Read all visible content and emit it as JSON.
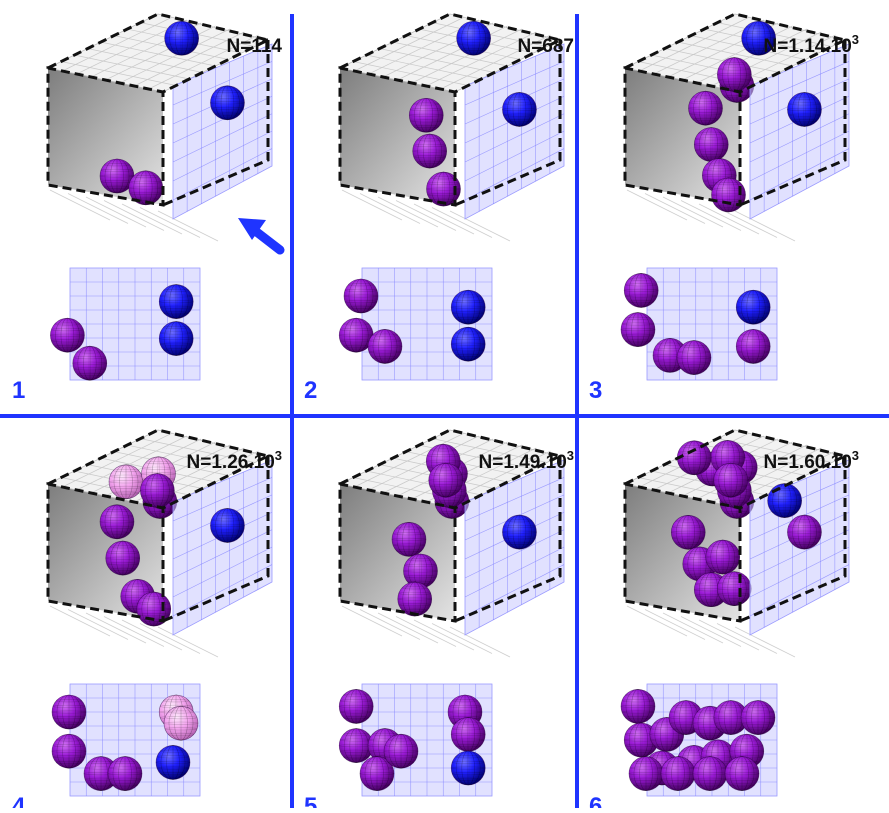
{
  "colors": {
    "divider": "#1f34ff",
    "arrow": "#1f34ff",
    "panel_label": "#1f34ff",
    "box_side": "#9e9e9e",
    "box_top": "#f2f2f2",
    "window": "#c8c8ff",
    "sphere_blue": "#1a1aff",
    "sphere_purple": "#9a1ad6",
    "sphere_pink": "#f3a3ee"
  },
  "panels": [
    {
      "index_label": "1",
      "n_base": "N=114",
      "n_exp": "",
      "top": [
        {
          "x": 0.78,
          "z": 0.45,
          "c": "blue"
        }
      ],
      "side": [
        {
          "y": 0.3,
          "z": 0.55,
          "c": "blue"
        }
      ],
      "back": [
        {
          "x": 0.6,
          "z": 0.2,
          "c": "purple"
        },
        {
          "x": 0.85,
          "z": 0.15,
          "c": "purple"
        }
      ],
      "view": [
        {
          "u": 0.14,
          "v": 0.6,
          "c": "purple"
        },
        {
          "u": 0.28,
          "v": 0.85,
          "c": "purple"
        },
        {
          "u": 0.82,
          "v": 0.3,
          "c": "blue"
        },
        {
          "u": 0.82,
          "v": 0.63,
          "c": "blue"
        }
      ]
    },
    {
      "index_label": "2",
      "n_base": "N=687",
      "n_exp": "",
      "top": [
        {
          "x": 0.78,
          "z": 0.45,
          "c": "blue"
        }
      ],
      "side": [
        {
          "y": 0.35,
          "z": 0.55,
          "c": "blue"
        }
      ],
      "back": [
        {
          "x": 0.75,
          "z": 0.75,
          "c": "purple"
        },
        {
          "x": 0.78,
          "z": 0.45,
          "c": "purple"
        },
        {
          "x": 0.9,
          "z": 0.15,
          "c": "purple"
        }
      ],
      "view": [
        {
          "u": 0.15,
          "v": 0.25,
          "c": "purple"
        },
        {
          "u": 0.12,
          "v": 0.6,
          "c": "purple"
        },
        {
          "u": 0.3,
          "v": 0.7,
          "c": "purple"
        },
        {
          "u": 0.82,
          "v": 0.35,
          "c": "blue"
        },
        {
          "u": 0.82,
          "v": 0.68,
          "c": "blue"
        }
      ]
    },
    {
      "index_label": "3",
      "n_base": "N=1.14.10",
      "n_exp": "3",
      "top": [
        {
          "x": 0.78,
          "z": 0.45,
          "c": "blue"
        },
        {
          "x": 0.08,
          "z": 0.9,
          "c": "purple"
        },
        {
          "x": 0.22,
          "z": 0.75,
          "c": "purple"
        }
      ],
      "side": [
        {
          "y": 0.35,
          "z": 0.55,
          "c": "blue"
        }
      ],
      "back": [
        {
          "x": 0.7,
          "z": 0.8,
          "c": "purple"
        },
        {
          "x": 0.75,
          "z": 0.5,
          "c": "purple"
        },
        {
          "x": 0.82,
          "z": 0.25,
          "c": "purple"
        },
        {
          "x": 0.9,
          "z": 0.1,
          "c": "purple"
        }
      ],
      "view": [
        {
          "u": 0.12,
          "v": 0.2,
          "c": "purple"
        },
        {
          "u": 0.1,
          "v": 0.55,
          "c": "purple"
        },
        {
          "u": 0.3,
          "v": 0.78,
          "c": "purple"
        },
        {
          "u": 0.45,
          "v": 0.8,
          "c": "purple"
        },
        {
          "u": 0.82,
          "v": 0.35,
          "c": "blue"
        },
        {
          "u": 0.82,
          "v": 0.7,
          "c": "purple"
        }
      ]
    },
    {
      "index_label": "4",
      "n_base": "N=1.26.10",
      "n_exp": "3",
      "top": [
        {
          "x": 0.25,
          "z": 0.45,
          "c": "pink"
        },
        {
          "x": 0.45,
          "z": 0.55,
          "c": "pink"
        },
        {
          "x": 0.08,
          "z": 0.9,
          "c": "purple"
        },
        {
          "x": 0.22,
          "z": 0.75,
          "c": "purple"
        }
      ],
      "side": [
        {
          "y": 0.35,
          "z": 0.55,
          "c": "blue"
        }
      ],
      "back": [
        {
          "x": 0.6,
          "z": 0.8,
          "c": "purple"
        },
        {
          "x": 0.65,
          "z": 0.5,
          "c": "purple"
        },
        {
          "x": 0.78,
          "z": 0.2,
          "c": "purple"
        },
        {
          "x": 0.92,
          "z": 0.12,
          "c": "purple"
        }
      ],
      "view": [
        {
          "u": 0.15,
          "v": 0.25,
          "c": "purple"
        },
        {
          "u": 0.15,
          "v": 0.6,
          "c": "purple"
        },
        {
          "u": 0.35,
          "v": 0.8,
          "c": "purple"
        },
        {
          "u": 0.5,
          "v": 0.8,
          "c": "purple"
        },
        {
          "u": 0.82,
          "v": 0.25,
          "c": "pink"
        },
        {
          "u": 0.85,
          "v": 0.35,
          "c": "pink"
        },
        {
          "u": 0.8,
          "v": 0.7,
          "c": "blue"
        }
      ]
    },
    {
      "index_label": "5",
      "n_base": "N=1.49.10",
      "n_exp": "3",
      "top": [
        {
          "x": 0.45,
          "z": 0.55,
          "c": "purple"
        },
        {
          "x": 0.6,
          "z": 0.35,
          "c": "purple"
        },
        {
          "x": 0.08,
          "z": 0.9,
          "c": "purple"
        },
        {
          "x": 0.22,
          "z": 0.75,
          "c": "purple"
        },
        {
          "x": 0.35,
          "z": 0.6,
          "c": "purple"
        }
      ],
      "side": [
        {
          "y": 0.4,
          "z": 0.55,
          "c": "blue"
        }
      ],
      "back": [
        {
          "x": 0.6,
          "z": 0.65,
          "c": "purple"
        },
        {
          "x": 0.7,
          "z": 0.4,
          "c": "purple"
        },
        {
          "x": 0.65,
          "z": 0.15,
          "c": "purple"
        }
      ],
      "view": [
        {
          "u": 0.12,
          "v": 0.2,
          "c": "purple"
        },
        {
          "u": 0.12,
          "v": 0.55,
          "c": "purple"
        },
        {
          "u": 0.3,
          "v": 0.55,
          "c": "purple"
        },
        {
          "u": 0.25,
          "v": 0.8,
          "c": "purple"
        },
        {
          "u": 0.4,
          "v": 0.6,
          "c": "purple"
        },
        {
          "u": 0.8,
          "v": 0.25,
          "c": "purple"
        },
        {
          "u": 0.82,
          "v": 0.45,
          "c": "purple"
        },
        {
          "u": 0.82,
          "v": 0.75,
          "c": "blue"
        }
      ]
    },
    {
      "index_label": "6",
      "n_base": "N=1.60.10",
      "n_exp": "3",
      "top": [
        {
          "x": 0.45,
          "z": 0.35,
          "c": "purple"
        },
        {
          "x": 0.55,
          "z": 0.5,
          "c": "purple"
        },
        {
          "x": 0.65,
          "z": 0.3,
          "c": "purple"
        },
        {
          "x": 0.08,
          "z": 0.9,
          "c": "purple"
        },
        {
          "x": 0.22,
          "z": 0.75,
          "c": "purple"
        },
        {
          "x": 0.35,
          "z": 0.6,
          "c": "purple"
        },
        {
          "x": 0.55,
          "z": 0.1,
          "c": "purple"
        }
      ],
      "side": [
        {
          "y": 0.4,
          "z": 0.55,
          "c": "purple"
        },
        {
          "y": 0.1,
          "z": 0.35,
          "c": "blue"
        }
      ],
      "back": [
        {
          "x": 0.55,
          "z": 0.7,
          "c": "purple"
        },
        {
          "x": 0.65,
          "z": 0.45,
          "c": "purple"
        },
        {
          "x": 0.75,
          "z": 0.25,
          "c": "purple"
        },
        {
          "x": 0.85,
          "z": 0.55,
          "c": "purple"
        },
        {
          "x": 0.95,
          "z": 0.3,
          "c": "purple"
        }
      ],
      "view": [
        {
          "u": 0.1,
          "v": 0.2,
          "c": "purple"
        },
        {
          "u": 0.12,
          "v": 0.5,
          "c": "purple"
        },
        {
          "u": 0.28,
          "v": 0.45,
          "c": "purple"
        },
        {
          "u": 0.4,
          "v": 0.3,
          "c": "purple"
        },
        {
          "u": 0.55,
          "v": 0.35,
          "c": "purple"
        },
        {
          "u": 0.68,
          "v": 0.3,
          "c": "purple"
        },
        {
          "u": 0.85,
          "v": 0.3,
          "c": "purple"
        },
        {
          "u": 0.25,
          "v": 0.75,
          "c": "purple"
        },
        {
          "u": 0.45,
          "v": 0.7,
          "c": "purple"
        },
        {
          "u": 0.6,
          "v": 0.65,
          "c": "purple"
        },
        {
          "u": 0.78,
          "v": 0.6,
          "c": "purple"
        },
        {
          "u": 0.15,
          "v": 0.8,
          "c": "purple"
        },
        {
          "u": 0.35,
          "v": 0.8,
          "c": "purple"
        },
        {
          "u": 0.55,
          "v": 0.8,
          "c": "purple"
        },
        {
          "u": 0.75,
          "v": 0.8,
          "c": "purple"
        }
      ]
    }
  ],
  "arrow_icon": "arrow-up-left-icon"
}
